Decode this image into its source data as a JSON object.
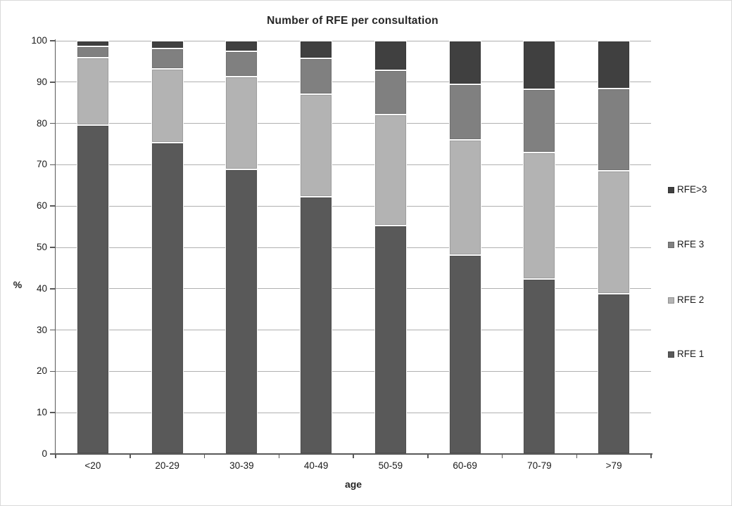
{
  "figure": {
    "title": "Number of RFE per consultation",
    "y_axis_label": "%",
    "x_axis_label": "age"
  },
  "legend": {
    "position": "right",
    "items": [
      {
        "label": "RFE>3",
        "color": "#404040"
      },
      {
        "label": "RFE 3",
        "color": "#808080"
      },
      {
        "label": "RFE 2",
        "color": "#b3b3b3"
      },
      {
        "label": "RFE 1",
        "color": "#595959"
      }
    ]
  },
  "chart_data": {
    "type": "bar",
    "stacked": true,
    "title": "Number of RFE per consultation",
    "xlabel": "age",
    "ylabel": "%",
    "ylim": [
      0,
      100
    ],
    "y_ticks": [
      0,
      10,
      20,
      30,
      40,
      50,
      60,
      70,
      80,
      90,
      100
    ],
    "grid": true,
    "legend_position": "right",
    "categories": [
      "<20",
      "20-29",
      "30-39",
      "40-49",
      "50-59",
      "60-69",
      "70-79",
      ">79"
    ],
    "series": [
      {
        "name": "RFE 1",
        "color": "#595959",
        "values": [
          79.6,
          75.3,
          68.9,
          62.3,
          55.2,
          48.1,
          42.3,
          38.8
        ]
      },
      {
        "name": "RFE 2",
        "color": "#b3b3b3",
        "values": [
          16.4,
          17.9,
          22.5,
          24.7,
          26.9,
          27.9,
          30.7,
          29.8
        ]
      },
      {
        "name": "RFE 3",
        "color": "#808080",
        "values": [
          2.6,
          4.9,
          6.1,
          8.7,
          10.8,
          13.5,
          15.2,
          19.8
        ]
      },
      {
        "name": "RFE>3",
        "color": "#404040",
        "values": [
          1.4,
          1.9,
          2.5,
          4.3,
          7.1,
          10.5,
          11.8,
          11.6
        ]
      }
    ]
  },
  "colors": {
    "axis": "#595959",
    "gridline": "#b0b0b0",
    "text": "#1a1a1a",
    "background": "#ffffff",
    "figure_border": "#d9d9d9"
  }
}
